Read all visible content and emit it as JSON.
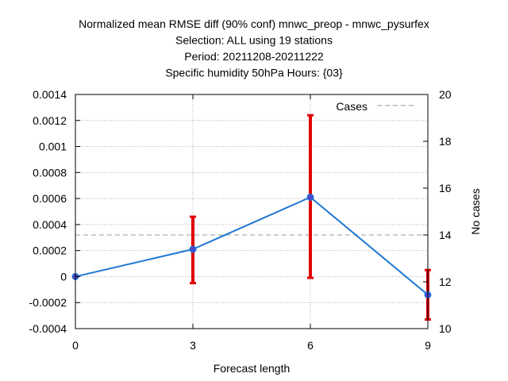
{
  "chart_data": {
    "type": "line",
    "title_lines": [
      "Normalized mean RMSE diff (90% conf) mnwc_preop - mnwc_pysurfex",
      "Selection: ALL using    19 stations",
      "Period: 20211208-20211222",
      "Specific humidity 50hPa   Hours: {03}"
    ],
    "xlabel": "Forecast length",
    "ylabel": "",
    "y2label": "No cases",
    "x_ticks": [
      0,
      3,
      6,
      9
    ],
    "y_ticks": [
      "-0.0004",
      "-0.0002",
      "0",
      "0.0002",
      "0.0004",
      "0.0006",
      "0.0008",
      "0.001",
      "0.0012",
      "0.0014"
    ],
    "y2_ticks": [
      10,
      12,
      14,
      16,
      18,
      20
    ],
    "xlim": [
      0,
      9
    ],
    "ylim": [
      -0.0004,
      0.0014
    ],
    "y2lim": [
      10,
      20
    ],
    "grid": true,
    "legend_position": "top-right",
    "series": [
      {
        "style": "line-with-points-and-errorbars",
        "color": "#1f78d4",
        "point_color": "#4a4ad0",
        "errorbar_color": "#e00000",
        "x": [
          0,
          3,
          6,
          9
        ],
        "y": [
          0.0,
          0.00021,
          0.00061,
          -0.00014
        ],
        "err_low": [
          0.0,
          -5e-05,
          -1e-05,
          -0.00033
        ],
        "err_high": [
          0.0,
          0.00046,
          0.00124,
          5e-05
        ]
      },
      {
        "name": "Cases",
        "style": "dashed",
        "color": "#999999",
        "axis": "y2",
        "x": [
          0,
          3,
          6,
          9
        ],
        "y": [
          14,
          14,
          14,
          14
        ]
      }
    ]
  }
}
